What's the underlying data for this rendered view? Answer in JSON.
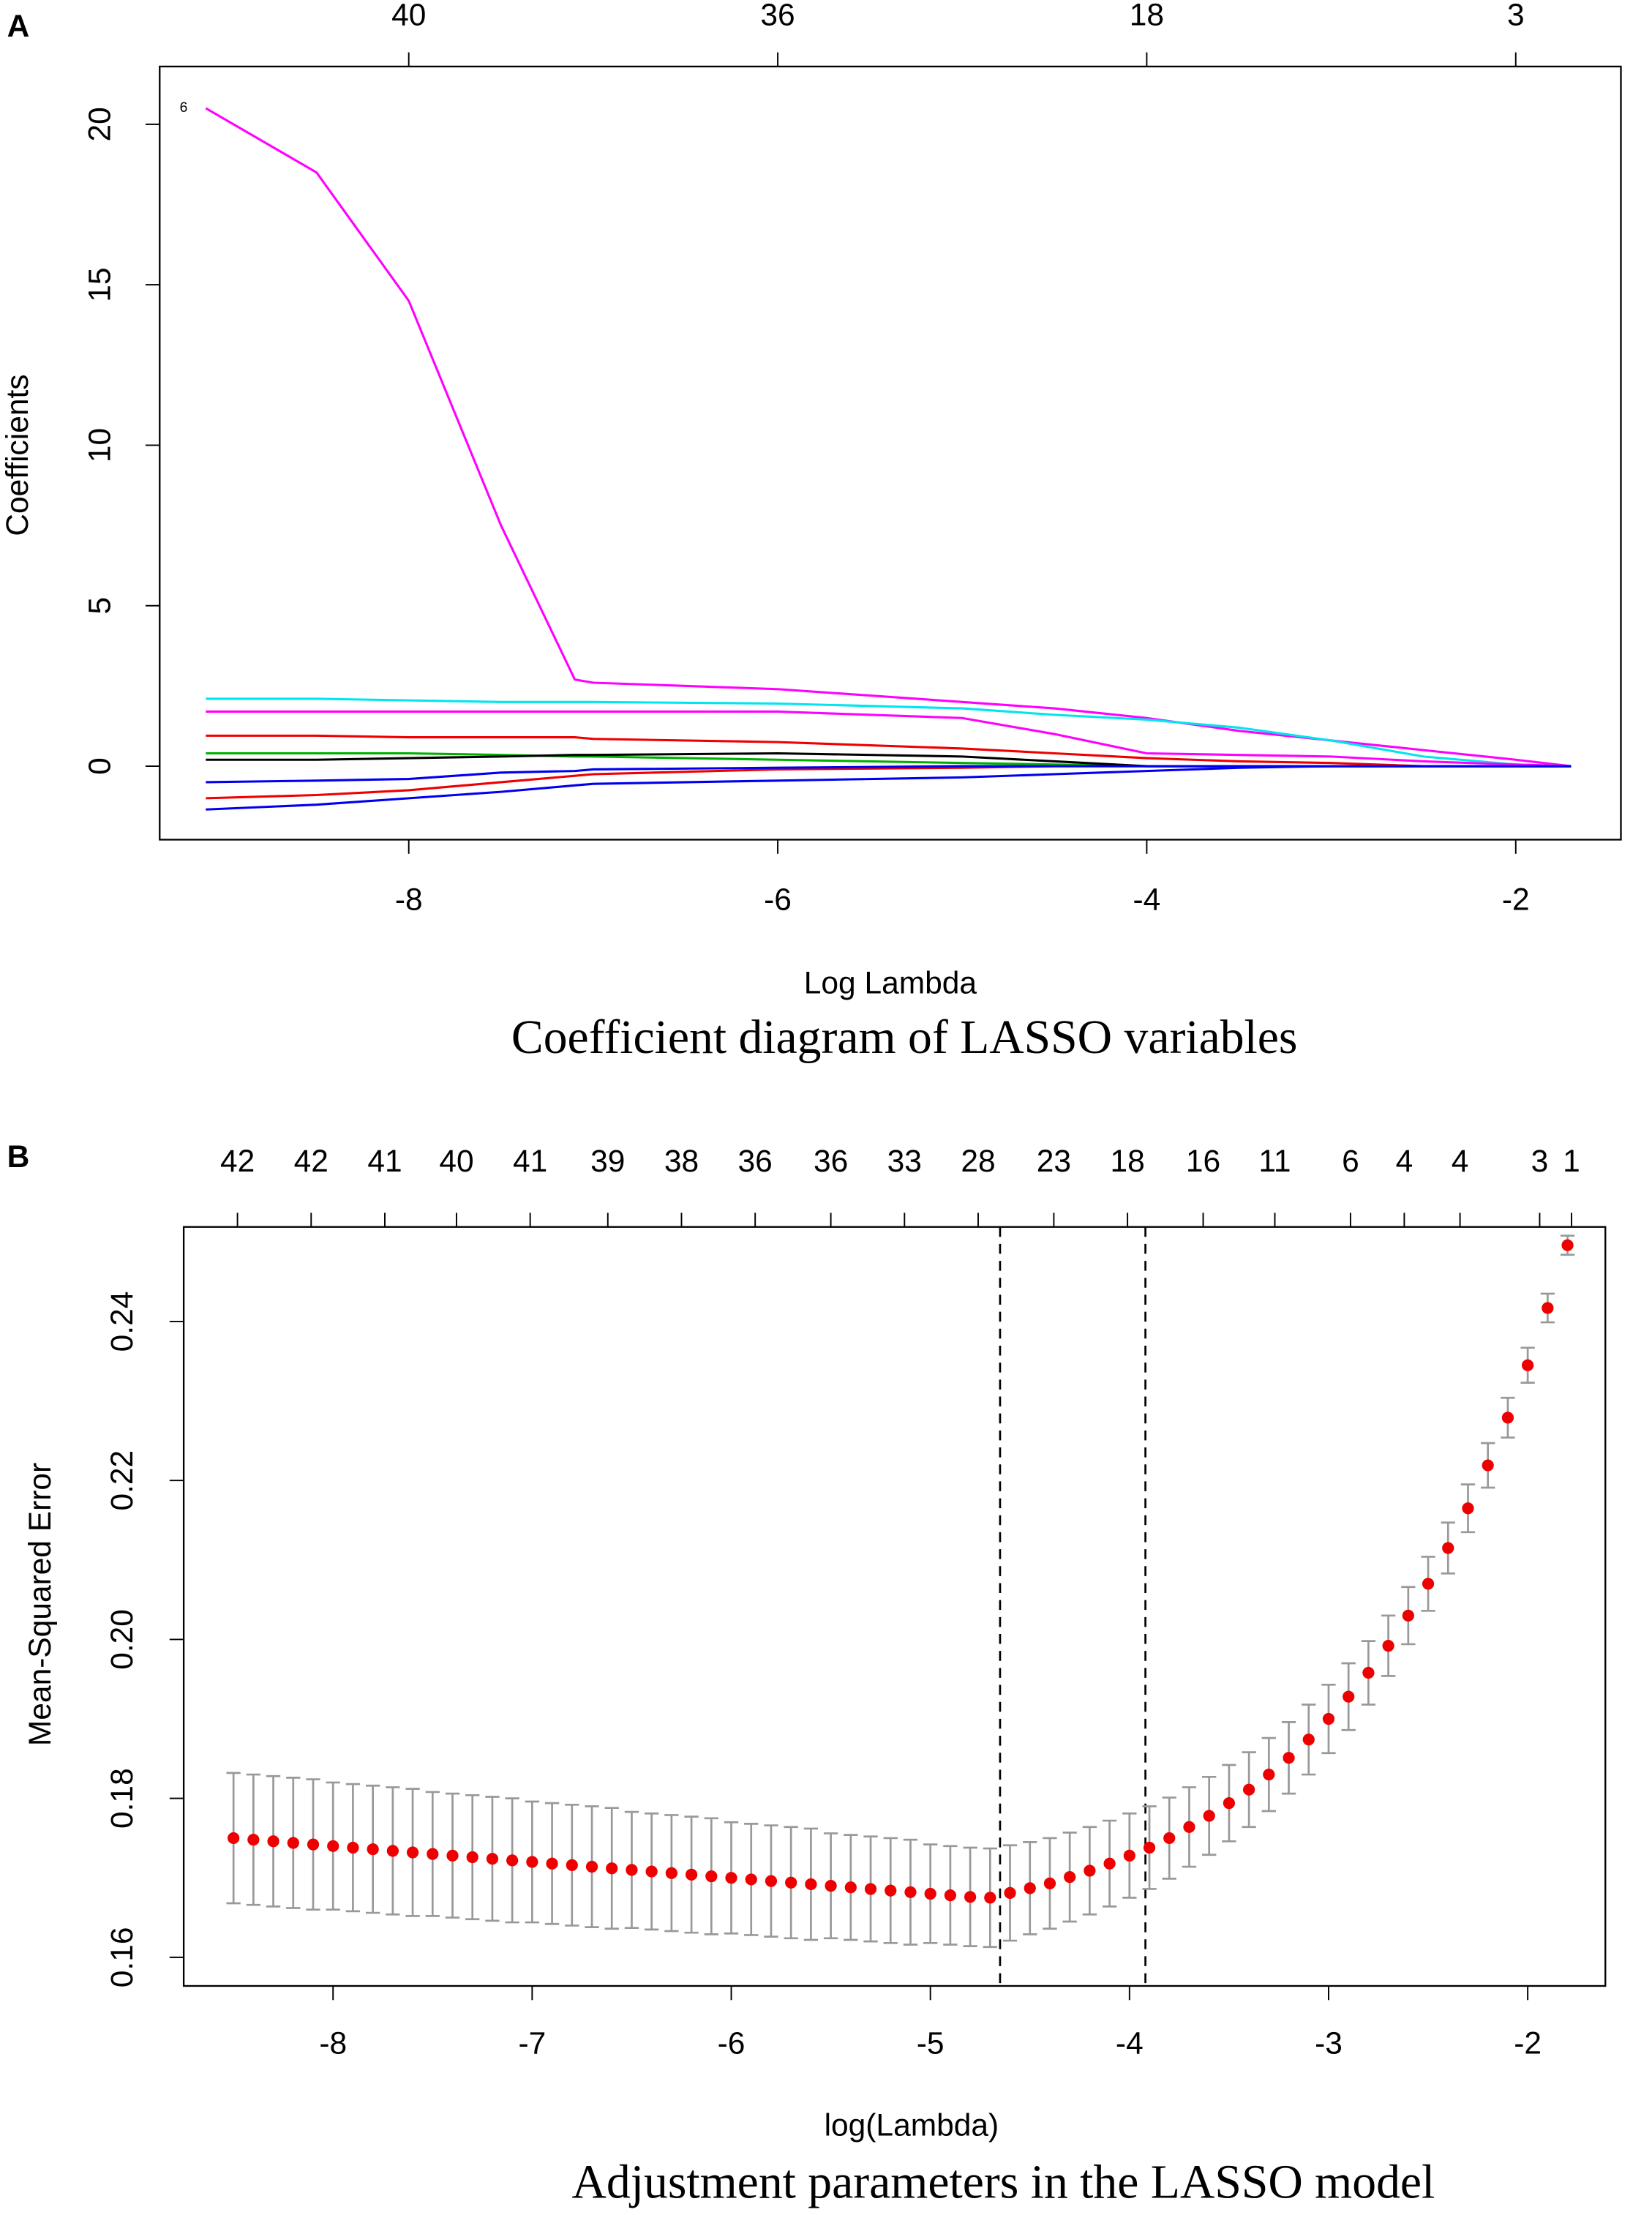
{
  "chart_data": [
    {
      "type": "line",
      "panel_label": "A",
      "title": "Coefficient diagram of LASSO variables",
      "x_label": "Log Lambda",
      "y_label": "Coefficients",
      "x": [
        -9.1,
        -8.5,
        -8,
        -7.5,
        -7.1,
        -7,
        -6,
        -5,
        -4.5,
        -4,
        -3.5,
        -3,
        -2.5,
        -2,
        -1.7
      ],
      "series": [
        {
          "color": "#ff00ff",
          "values": [
            20.5,
            18.5,
            14.5,
            7.5,
            2.7,
            2.6,
            2.4,
            2.0,
            1.8,
            1.5,
            1.1,
            0.8,
            0.5,
            0.2,
            0
          ]
        },
        {
          "color": "#00e5ee",
          "values": [
            2.1,
            2.1,
            2.05,
            2.0,
            2.0,
            2.0,
            1.95,
            1.8,
            1.6,
            1.45,
            1.2,
            0.8,
            0.3,
            0.05,
            0
          ]
        },
        {
          "color": "#ff00ff",
          "values": [
            1.7,
            1.7,
            1.7,
            1.7,
            1.7,
            1.7,
            1.7,
            1.5,
            1.0,
            0.4,
            0.35,
            0.3,
            0.15,
            0.05,
            0
          ]
        },
        {
          "color": "#ee0000",
          "values": [
            0.95,
            0.95,
            0.9,
            0.9,
            0.9,
            0.85,
            0.75,
            0.55,
            0.4,
            0.25,
            0.15,
            0.1,
            0,
            0,
            0
          ]
        },
        {
          "color": "#00b000",
          "values": [
            0.4,
            0.4,
            0.4,
            0.35,
            0.3,
            0.3,
            0.2,
            0.1,
            0.05,
            0,
            0,
            0,
            0,
            0,
            0
          ]
        },
        {
          "color": "#000000",
          "values": [
            0.2,
            0.2,
            0.25,
            0.3,
            0.35,
            0.35,
            0.4,
            0.3,
            0.15,
            0,
            0,
            0,
            0,
            0,
            0
          ]
        },
        {
          "color": "#0000ee",
          "values": [
            -1.35,
            -1.2,
            -1.0,
            -0.8,
            -0.6,
            -0.55,
            -0.45,
            -0.35,
            -0.25,
            -0.15,
            -0.05,
            0,
            0,
            0,
            0
          ]
        },
        {
          "color": "#ee0000",
          "values": [
            -1.0,
            -0.9,
            -0.75,
            -0.5,
            -0.3,
            -0.25,
            -0.1,
            -0.05,
            0,
            0,
            0,
            0,
            0,
            0,
            0
          ]
        },
        {
          "color": "#0000ee",
          "values": [
            -0.5,
            -0.45,
            -0.4,
            -0.2,
            -0.15,
            -0.1,
            -0.05,
            0,
            0,
            0,
            0,
            0,
            0,
            0,
            0
          ]
        }
      ],
      "annotations": [
        {
          "text": "6",
          "x": -9.22,
          "y": 20.5
        }
      ],
      "xlim": [
        -9.35,
        -1.43
      ],
      "ylim": [
        -2.29,
        21.8
      ],
      "xticks": [
        -8,
        -6,
        -4,
        -2
      ],
      "yticks": [
        0,
        5,
        10,
        15,
        20
      ],
      "x2ticks": [
        {
          "value": -8,
          "label": "40"
        },
        {
          "value": -6,
          "label": "36"
        },
        {
          "value": -4,
          "label": "18"
        },
        {
          "value": -2,
          "label": "3"
        }
      ]
    },
    {
      "type": "scatter",
      "panel_label": "B",
      "title": "Adjustment parameters in the LASSO model",
      "x_label": "log(Lambda)",
      "y_label": "Mean-Squared Error",
      "color": "#ee0000",
      "error_color": "#999999",
      "x": [
        -8.5,
        -8.4,
        -8.3,
        -8.2,
        -8.1,
        -8.0,
        -7.9,
        -7.8,
        -7.7,
        -7.6,
        -7.5,
        -7.4,
        -7.3,
        -7.2,
        -7.1,
        -7.0,
        -6.9,
        -6.8,
        -6.7,
        -6.6,
        -6.5,
        -6.4,
        -6.3,
        -6.2,
        -6.1,
        -6.0,
        -5.9,
        -5.8,
        -5.7,
        -5.6,
        -5.5,
        -5.4,
        -5.3,
        -5.2,
        -5.1,
        -5.0,
        -4.9,
        -4.8,
        -4.7,
        -4.6,
        -4.5,
        -4.4,
        -4.3,
        -4.2,
        -4.1,
        -4.0,
        -3.9,
        -3.8,
        -3.7,
        -3.6,
        -3.5,
        -3.4,
        -3.3,
        -3.2,
        -3.1,
        -3.0,
        -2.9,
        -2.8,
        -2.7,
        -2.6,
        -2.5,
        -2.4,
        -2.3,
        -2.2,
        -2.1,
        -2.0,
        -1.9,
        -1.8
      ],
      "values": [
        0.175,
        0.1748,
        0.1746,
        0.1744,
        0.1742,
        0.174,
        0.1738,
        0.1736,
        0.1734,
        0.1732,
        0.173,
        0.1728,
        0.1726,
        0.1724,
        0.1722,
        0.172,
        0.1718,
        0.1716,
        0.1714,
        0.1712,
        0.171,
        0.1708,
        0.1706,
        0.1704,
        0.1702,
        0.17,
        0.1698,
        0.1696,
        0.1694,
        0.1692,
        0.169,
        0.1688,
        0.1686,
        0.1684,
        0.1682,
        0.168,
        0.1678,
        0.1676,
        0.1675,
        0.1681,
        0.1687,
        0.1693,
        0.1701,
        0.1709,
        0.1718,
        0.1728,
        0.1738,
        0.175,
        0.1764,
        0.1778,
        0.1794,
        0.1811,
        0.183,
        0.1851,
        0.1874,
        0.19,
        0.1928,
        0.1958,
        0.1992,
        0.203,
        0.207,
        0.2115,
        0.2165,
        0.2219,
        0.2279,
        0.2345,
        0.2417,
        0.2496
      ],
      "errors": [
        0.0082,
        0.0082,
        0.0082,
        0.0082,
        0.0082,
        0.008,
        0.008,
        0.008,
        0.008,
        0.008,
        0.0078,
        0.0078,
        0.0078,
        0.0078,
        0.0078,
        0.0076,
        0.0076,
        0.0076,
        0.0076,
        0.0076,
        0.0073,
        0.0073,
        0.0073,
        0.0073,
        0.0073,
        0.007,
        0.007,
        0.007,
        0.007,
        0.007,
        0.0066,
        0.0066,
        0.0066,
        0.0066,
        0.0066,
        0.0062,
        0.0062,
        0.0062,
        0.0062,
        0.006,
        0.0058,
        0.0057,
        0.0056,
        0.0055,
        0.0054,
        0.0053,
        0.0052,
        0.0051,
        0.005,
        0.0049,
        0.0048,
        0.0047,
        0.0046,
        0.0045,
        0.0044,
        0.0043,
        0.0042,
        0.004,
        0.0038,
        0.0036,
        0.0034,
        0.0032,
        0.003,
        0.0028,
        0.0025,
        0.0022,
        0.0018,
        0.0012
      ],
      "vlines": [
        -4.65,
        -3.92
      ],
      "xlim": [
        -8.75,
        -1.61
      ],
      "ylim": [
        0.1564,
        0.2519
      ],
      "xticks": [
        -8,
        -7,
        -6,
        -5,
        -4,
        -3,
        -2
      ],
      "yticks": [
        0.16,
        0.18,
        {
          "value": 0.2,
          "label": "0.20"
        },
        0.22,
        0.24
      ],
      "x2ticks": [
        {
          "value": -8.48,
          "label": "42"
        },
        {
          "value": -8.11,
          "label": "42"
        },
        {
          "value": -7.74,
          "label": "41"
        },
        {
          "value": -7.38,
          "label": "40"
        },
        {
          "value": -7.01,
          "label": "41"
        },
        {
          "value": -6.62,
          "label": "39"
        },
        {
          "value": -6.25,
          "label": "38"
        },
        {
          "value": -5.88,
          "label": "36"
        },
        {
          "value": -5.5,
          "label": "36"
        },
        {
          "value": -5.13,
          "label": "33"
        },
        {
          "value": -4.76,
          "label": "28"
        },
        {
          "value": -4.38,
          "label": "23"
        },
        {
          "value": -4.01,
          "label": "18"
        },
        {
          "value": -3.63,
          "label": "16"
        },
        {
          "value": -3.27,
          "label": "11"
        },
        {
          "value": -2.89,
          "label": "6"
        },
        {
          "value": -2.62,
          "label": "4"
        },
        {
          "value": -2.34,
          "label": "4"
        },
        {
          "value": -1.94,
          "label": "3"
        },
        {
          "value": -1.78,
          "label": "1"
        }
      ]
    }
  ]
}
